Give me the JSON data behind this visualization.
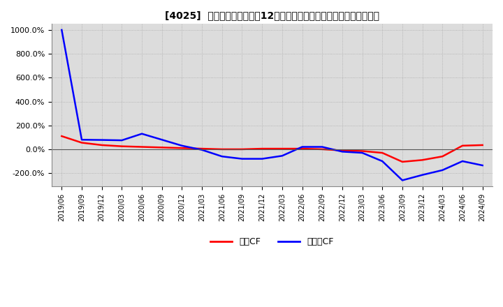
{
  "title": "[4025]  キャッシュフローの12か月移動合計の対前年同期増減率の推移",
  "ylim": [
    -310,
    1050
  ],
  "yticks": [
    -200,
    0,
    200,
    400,
    600,
    800,
    1000
  ],
  "ytick_labels": [
    "-200.0%",
    "0.0%",
    "200.0%",
    "400.0%",
    "600.0%",
    "800.0%",
    "1000.0%"
  ],
  "background_color": "#ffffff",
  "plot_bg_color": "#dcdcdc",
  "grid_color": "#ffffff",
  "legend_labels": [
    "営業CF",
    "フリーCF"
  ],
  "legend_colors": [
    "#ff0000",
    "#0000ff"
  ],
  "x_dates": [
    "2019/06",
    "2019/09",
    "2019/12",
    "2020/03",
    "2020/06",
    "2020/09",
    "2020/12",
    "2021/03",
    "2021/06",
    "2021/09",
    "2021/12",
    "2022/03",
    "2022/06",
    "2022/09",
    "2022/12",
    "2023/03",
    "2023/06",
    "2023/09",
    "2023/12",
    "2024/03",
    "2024/06",
    "2024/09"
  ],
  "operating_cf": [
    110,
    55,
    35,
    25,
    20,
    15,
    10,
    5,
    0,
    0,
    5,
    5,
    5,
    0,
    -10,
    -15,
    -30,
    -105,
    -90,
    -60,
    30,
    35
  ],
  "free_cf": [
    1000,
    80,
    78,
    75,
    130,
    80,
    30,
    -5,
    -60,
    -80,
    -80,
    -55,
    20,
    20,
    -20,
    -30,
    -100,
    -260,
    -215,
    -175,
    -100,
    -135
  ]
}
